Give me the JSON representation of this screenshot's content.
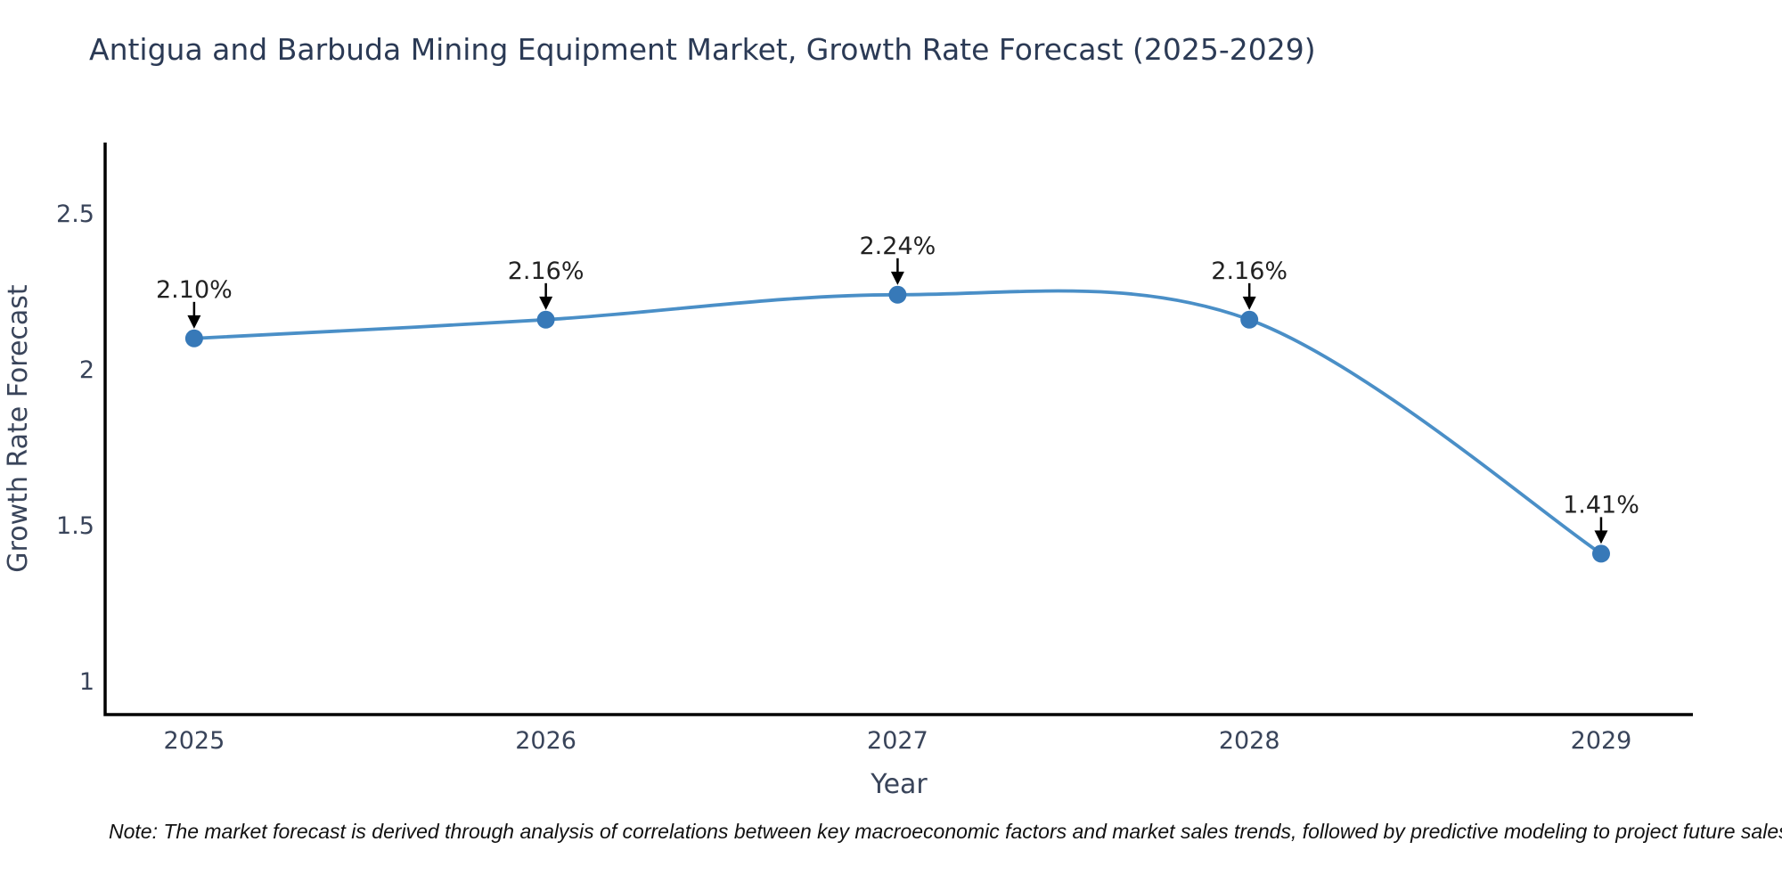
{
  "page": {
    "title": "Antigua and Barbuda Mining Equipment Market, Growth Rate Forecast (2025-2029)",
    "note": "Note: The market forecast is derived through analysis of correlations between key macroeconomic factors and market sales trends, followed by predictive modeling to project future sales"
  },
  "colors": {
    "line": "#4a8fc7",
    "marker": "#3779b8",
    "axis_line": "#000000",
    "title_text": "#2b3a55",
    "tick_text": "#39445a",
    "annotation_text": "#222222",
    "arrow": "#000000",
    "note_text": "#111111",
    "background": "#ffffff"
  },
  "chart_data": {
    "type": "line",
    "title": "Antigua and Barbuda Mining Equipment Market, Growth Rate Forecast (2025-2029)",
    "xlabel": "Year",
    "ylabel": "Growth Rate Forecast",
    "x": [
      2025,
      2026,
      2027,
      2028,
      2029
    ],
    "series": [
      {
        "name": "Growth Rate Forecast",
        "values": [
          2.1,
          2.16,
          2.24,
          2.16,
          1.41
        ]
      }
    ],
    "point_labels": [
      "2.10%",
      "2.16%",
      "2.24%",
      "2.16%",
      "1.41%"
    ],
    "xtick_labels": [
      "2025",
      "2026",
      "2027",
      "2028",
      "2029"
    ],
    "yticks": [
      1,
      1.5,
      2,
      2.5
    ],
    "ytick_labels": [
      "1",
      "1.5",
      "2",
      "2.5"
    ],
    "xlim": [
      2024.747,
      2029.261
    ],
    "ylim": [
      0.894,
      2.728
    ],
    "grid": false,
    "legend_position": "none",
    "line_style": "smooth-spline",
    "marker_style": "circle",
    "annotation_style": "value-label-with-down-arrow"
  }
}
